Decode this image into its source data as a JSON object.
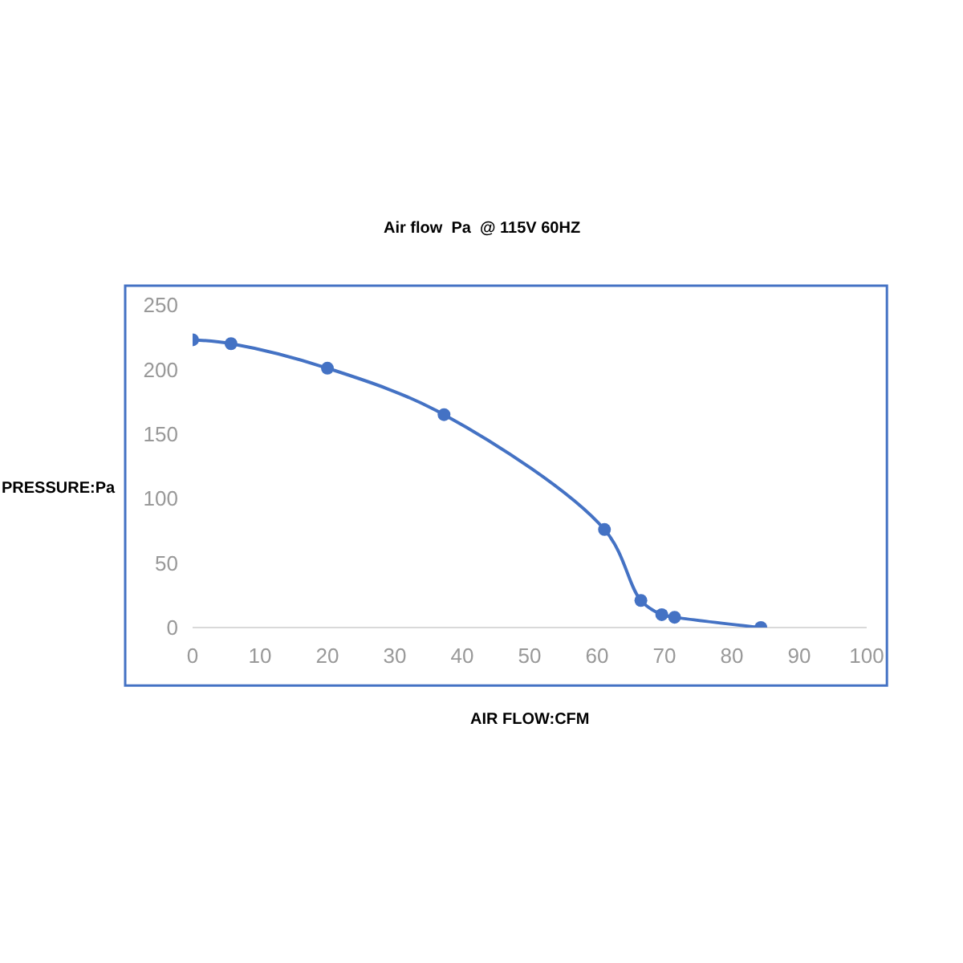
{
  "chart_data": {
    "type": "line",
    "title": "Air flow  Pa  @ 115V 60HZ",
    "xlabel": "AIR FLOW:CFM",
    "ylabel": "PRESSURE:Pa",
    "x": [
      0,
      5.7,
      20,
      37.3,
      61.1,
      66.5,
      69.6,
      71.5,
      84.3
    ],
    "series": [
      {
        "color": "#4472c4",
        "values": [
          223,
          220,
          201,
          165,
          76,
          21,
          10,
          8,
          0
        ]
      }
    ],
    "xlim": [
      0,
      100
    ],
    "xticks": [
      0,
      10,
      20,
      30,
      40,
      50,
      60,
      70,
      80,
      90,
      100
    ],
    "ylim": [
      0,
      250
    ],
    "yticks": [
      0,
      50,
      100,
      150,
      200,
      250
    ],
    "marker": "circle",
    "line_style": "solid"
  }
}
